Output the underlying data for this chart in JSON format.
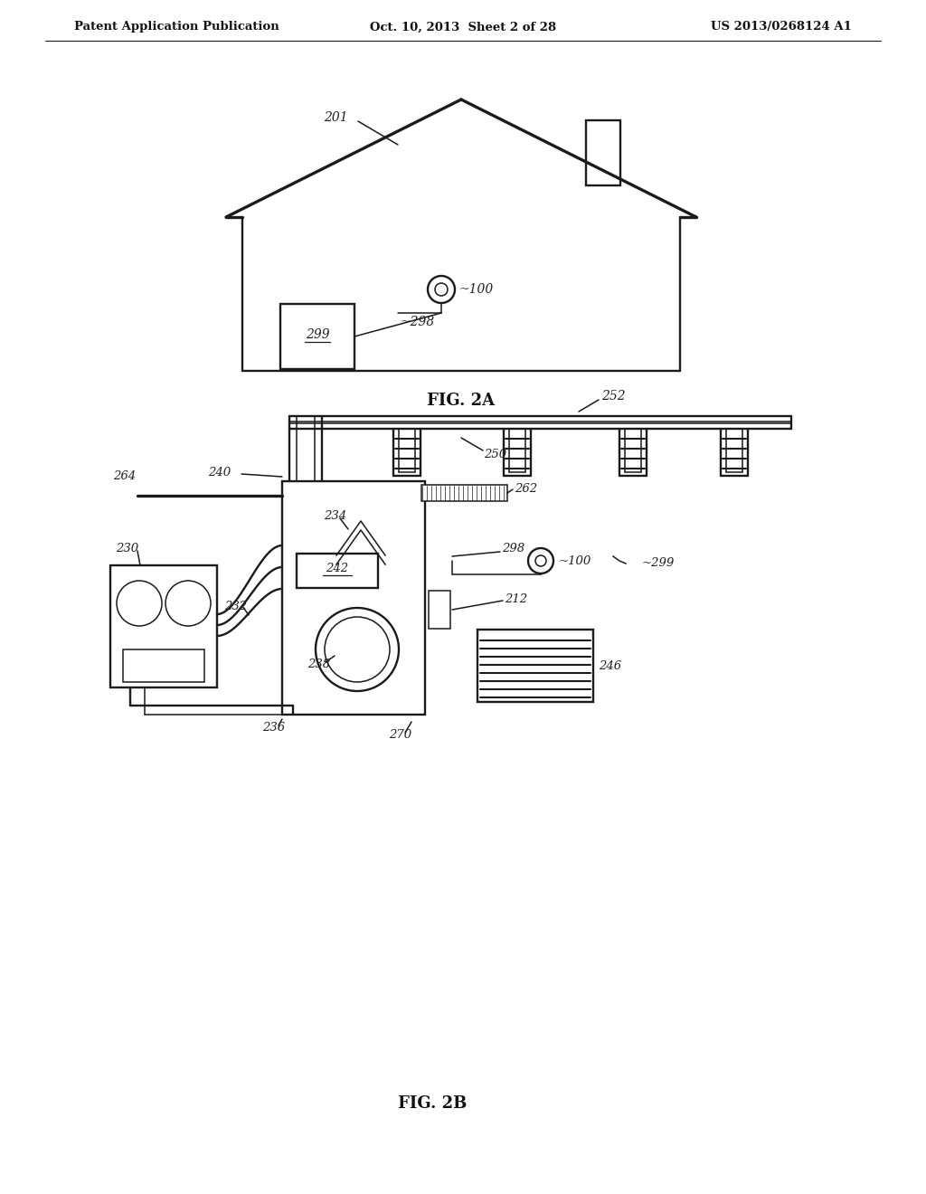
{
  "bg_color": "#ffffff",
  "header_left": "Patent Application Publication",
  "header_center": "Oct. 10, 2013  Sheet 2 of 28",
  "header_right": "US 2013/0268124 A1",
  "fig2a_label": "FIG. 2A",
  "fig2b_label": "FIG. 2B",
  "line_color": "#1a1a1a",
  "label_color": "#222222"
}
